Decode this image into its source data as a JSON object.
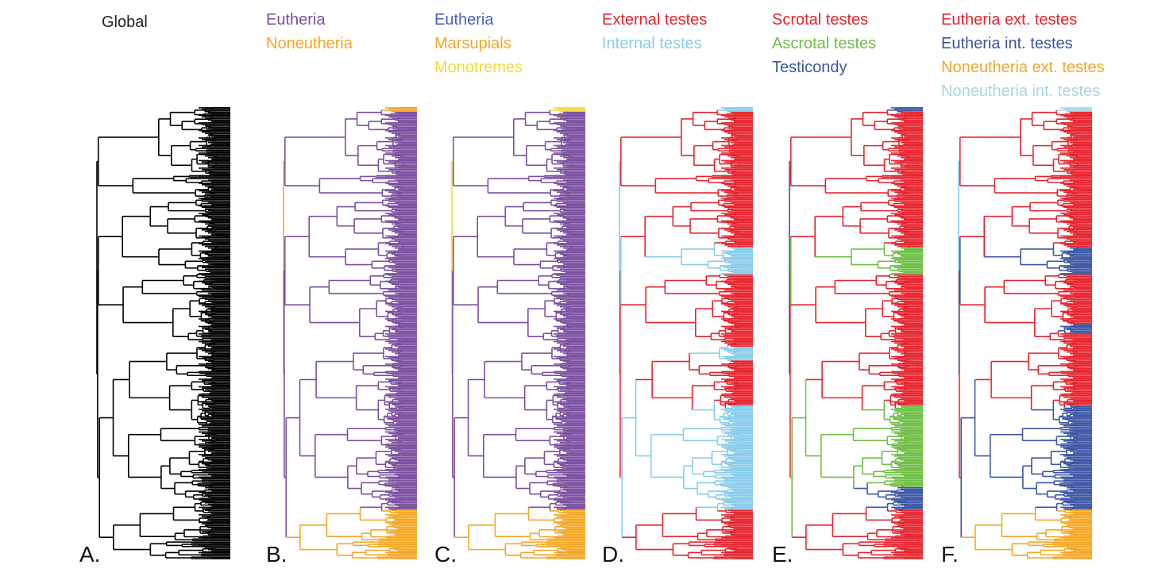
{
  "colors": {
    "black": "#000000",
    "purple": "#7B4FA0",
    "orange": "#F5A623",
    "yellow": "#F2DC3A",
    "red": "#E8232D",
    "lightblue": "#87CCEB",
    "green": "#6DBE45",
    "blue": "#3A56A4",
    "paleblue": "#A9D6E5",
    "eublue": "#4A62B5"
  },
  "panels": [
    {
      "letter": "A.",
      "legend": [
        {
          "label": "Global",
          "color": "#222222"
        }
      ],
      "tree_scheme": "global"
    },
    {
      "letter": "B.",
      "legend": [
        {
          "label": "Eutheria",
          "color": "#7B4FA0"
        },
        {
          "label": "Noneutheria",
          "color": "#F5A623"
        }
      ],
      "tree_scheme": "eutheria"
    },
    {
      "letter": "C.",
      "legend": [
        {
          "label": "Eutheria",
          "color": "#4A62B5"
        },
        {
          "label": "Marsupials",
          "color": "#F5A623"
        },
        {
          "label": "Monotremes",
          "color": "#F2DC3A"
        }
      ],
      "tree_scheme": "marsupials"
    },
    {
      "letter": "D.",
      "legend": [
        {
          "label": "External testes",
          "color": "#E8232D"
        },
        {
          "label": "Internal testes",
          "color": "#87CCEB"
        }
      ],
      "tree_scheme": "testes"
    },
    {
      "letter": "E.",
      "legend": [
        {
          "label": "Scrotal testes",
          "color": "#E8232D"
        },
        {
          "label": "Ascrotal testes",
          "color": "#6DBE45"
        },
        {
          "label": "Testicondy",
          "color": "#3A56A4"
        }
      ],
      "tree_scheme": "scrotal"
    },
    {
      "letter": "F.",
      "legend": [
        {
          "label": "Eutheria ext. testes",
          "color": "#E8232D"
        },
        {
          "label": "Eutheria int. testes",
          "color": "#3A56A4"
        },
        {
          "label": "Noneutheria ext. testes",
          "color": "#F5A623"
        },
        {
          "label": "Noneutheria int. testes",
          "color": "#A9D6E5"
        }
      ],
      "tree_scheme": "combined"
    }
  ]
}
